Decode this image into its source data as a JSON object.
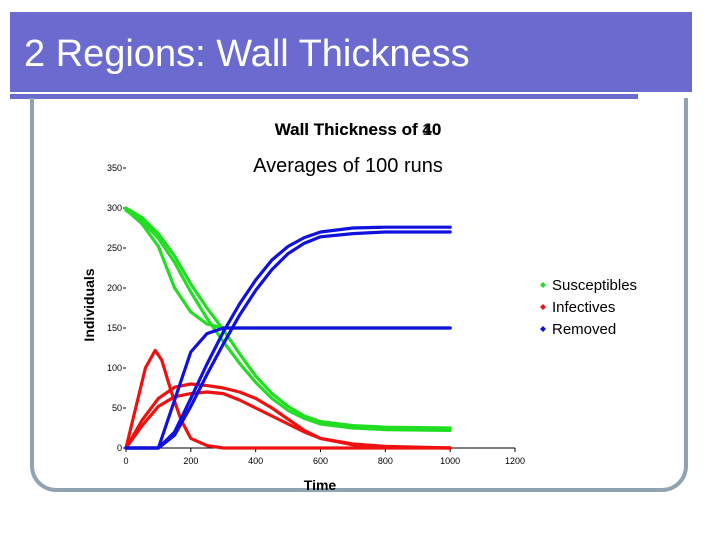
{
  "slide": {
    "title": "2 Regions: Wall Thickness",
    "accent_color": "#6b6bcf",
    "frame_color": "#8fa3b0"
  },
  "chart_data": {
    "type": "line",
    "title": "Wall Thickness of 40",
    "title_overlay": "Wall Thickness of 10",
    "subtitle": "Averages of 100 runs",
    "xlabel": "Time",
    "ylabel": "Individuals",
    "xlim": [
      0,
      1200
    ],
    "ylim": [
      0,
      350
    ],
    "xticks": [
      0,
      200,
      400,
      600,
      800,
      1000,
      1200
    ],
    "yticks": [
      0,
      50,
      100,
      150,
      200,
      250,
      300,
      350
    ],
    "grid": false,
    "legend_position": "right",
    "legend": [
      {
        "label": "Susceptibles",
        "color": "#22dd22"
      },
      {
        "label": "Infectives",
        "color": "#ee1111"
      },
      {
        "label": "Removed",
        "color": "#1111dd"
      }
    ],
    "series": [
      {
        "group": "Susceptibles",
        "color": "#22dd22",
        "x": [
          0,
          50,
          100,
          150,
          200,
          250,
          300,
          400,
          500,
          600,
          700,
          800,
          1000
        ],
        "y": [
          298,
          280,
          252,
          200,
          170,
          155,
          150,
          150,
          150,
          150,
          150,
          150,
          150
        ]
      },
      {
        "group": "Susceptibles",
        "color": "#22dd22",
        "x": [
          0,
          50,
          100,
          150,
          200,
          250,
          300,
          350,
          400,
          450,
          500,
          550,
          600,
          700,
          800,
          1000
        ],
        "y": [
          300,
          288,
          268,
          240,
          205,
          175,
          148,
          118,
          90,
          68,
          52,
          40,
          33,
          28,
          26,
          25
        ]
      },
      {
        "group": "Susceptibles",
        "color": "#22dd22",
        "x": [
          0,
          50,
          100,
          150,
          200,
          250,
          300,
          350,
          400,
          450,
          500,
          550,
          600,
          700,
          800,
          1000
        ],
        "y": [
          297,
          284,
          262,
          232,
          195,
          162,
          133,
          106,
          82,
          62,
          47,
          37,
          30,
          25,
          23,
          22
        ]
      },
      {
        "group": "Infectives",
        "color": "#ee1111",
        "x": [
          0,
          30,
          60,
          90,
          110,
          140,
          170,
          200,
          250,
          300,
          400,
          1000
        ],
        "y": [
          0,
          50,
          100,
          122,
          110,
          70,
          35,
          12,
          3,
          0,
          0,
          0
        ]
      },
      {
        "group": "Infectives",
        "color": "#ee1111",
        "x": [
          0,
          50,
          100,
          150,
          200,
          250,
          300,
          350,
          400,
          450,
          500,
          550,
          600,
          700,
          800,
          1000
        ],
        "y": [
          0,
          35,
          62,
          76,
          80,
          78,
          75,
          70,
          62,
          50,
          36,
          22,
          12,
          4,
          1,
          0
        ]
      },
      {
        "group": "Infectives",
        "color": "#ee1111",
        "x": [
          0,
          50,
          100,
          150,
          200,
          250,
          300,
          350,
          400,
          450,
          500,
          550,
          600,
          700,
          800,
          1000
        ],
        "y": [
          0,
          28,
          52,
          64,
          68,
          70,
          68,
          60,
          50,
          40,
          30,
          20,
          12,
          5,
          2,
          0
        ]
      },
      {
        "group": "Removed",
        "color": "#1111dd",
        "x": [
          0,
          100,
          150,
          200,
          250,
          300,
          350,
          400,
          500,
          600,
          700,
          800,
          1000
        ],
        "y": [
          0,
          0,
          60,
          120,
          143,
          150,
          150,
          150,
          150,
          150,
          150,
          150,
          150
        ]
      },
      {
        "group": "Removed",
        "color": "#1111dd",
        "x": [
          0,
          100,
          150,
          200,
          250,
          300,
          350,
          400,
          450,
          500,
          550,
          600,
          700,
          800,
          1000
        ],
        "y": [
          0,
          0,
          20,
          62,
          105,
          145,
          180,
          210,
          235,
          252,
          263,
          270,
          275,
          276,
          276
        ]
      },
      {
        "group": "Removed",
        "color": "#1111dd",
        "x": [
          0,
          100,
          150,
          200,
          250,
          300,
          350,
          400,
          450,
          500,
          550,
          600,
          700,
          800,
          1000
        ],
        "y": [
          0,
          0,
          16,
          52,
          92,
          130,
          166,
          197,
          223,
          243,
          256,
          264,
          268,
          270,
          270
        ]
      }
    ]
  }
}
